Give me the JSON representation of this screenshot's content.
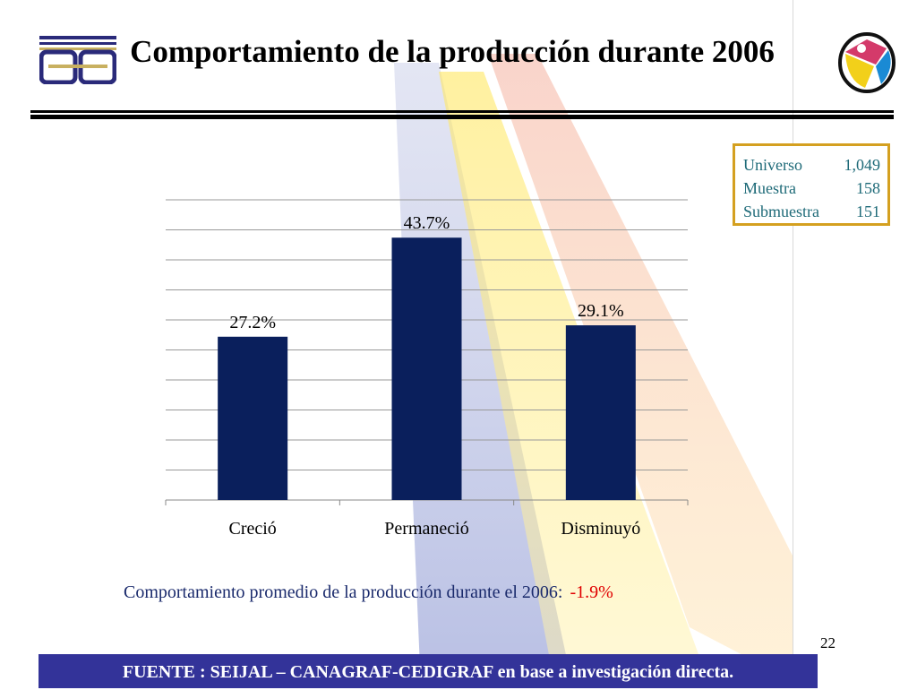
{
  "title": "Comportamiento de la producción durante 2006",
  "logos": {
    "left": "CDG",
    "right": "logo"
  },
  "info_box": [
    {
      "label": "Universo",
      "value": "1,049"
    },
    {
      "label": "Muestra",
      "value": "158"
    },
    {
      "label": "Submuestra",
      "value": "151"
    }
  ],
  "chart_data": {
    "type": "bar",
    "title": "",
    "categories": [
      "Creció",
      "Permaneció",
      "Disminuyó"
    ],
    "values": [
      27.2,
      43.7,
      29.1
    ],
    "labels": [
      "27.2%",
      "43.7%",
      "29.1%"
    ],
    "xlabel": "",
    "ylabel": "",
    "ylim": [
      0,
      50
    ],
    "grid_step": 5,
    "grid": true,
    "bar_color": "#0a1f5c"
  },
  "summary": {
    "text": "Comportamiento promedio de la producción durante el 2006:",
    "value": "-1.9%"
  },
  "page_number": "22",
  "footer": "FUENTE :  SEIJAL – CANAGRAF-CEDIGRAF en base a investigación directa."
}
